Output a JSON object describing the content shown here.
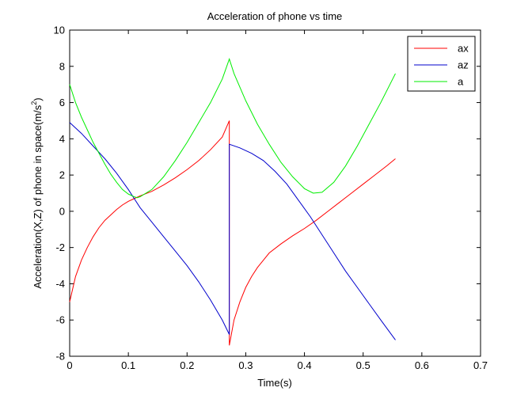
{
  "chart_data": {
    "type": "line",
    "title": "Acceleration of phone vs time",
    "xlabel": "Time(s)",
    "ylabel": "Acceleration(X,Z) of phone in space(m/s",
    "ylabel_sup": "2",
    "ylabel_close": ")",
    "xlim": [
      0,
      0.7
    ],
    "ylim": [
      -8,
      10
    ],
    "xticks": [
      0,
      0.1,
      0.2,
      0.3,
      0.4,
      0.5,
      0.6,
      0.7
    ],
    "xtick_labels": [
      "0",
      "0.1",
      "0.2",
      "0.3",
      "0.4",
      "0.5",
      "0.6",
      "0.7"
    ],
    "yticks": [
      -8,
      -6,
      -4,
      -2,
      0,
      2,
      4,
      6,
      8,
      10
    ],
    "ytick_labels": [
      "-8",
      "-6",
      "-4",
      "-2",
      "0",
      "2",
      "4",
      "6",
      "8",
      "10"
    ],
    "grid": false,
    "legend_position": "top-right",
    "series": [
      {
        "name": "ax",
        "color": "#ff0000",
        "points": [
          [
            0,
            -5.0
          ],
          [
            0.01,
            -3.6
          ],
          [
            0.02,
            -2.7
          ],
          [
            0.03,
            -2.0
          ],
          [
            0.04,
            -1.4
          ],
          [
            0.05,
            -0.9
          ],
          [
            0.06,
            -0.5
          ],
          [
            0.07,
            -0.2
          ],
          [
            0.08,
            0.1
          ],
          [
            0.09,
            0.35
          ],
          [
            0.1,
            0.55
          ],
          [
            0.11,
            0.7
          ],
          [
            0.12,
            0.85
          ],
          [
            0.14,
            1.1
          ],
          [
            0.16,
            1.45
          ],
          [
            0.18,
            1.85
          ],
          [
            0.2,
            2.3
          ],
          [
            0.22,
            2.8
          ],
          [
            0.24,
            3.4
          ],
          [
            0.26,
            4.1
          ],
          [
            0.272,
            5.0
          ],
          [
            0.272,
            -7.4
          ],
          [
            0.28,
            -6.0
          ],
          [
            0.29,
            -5.0
          ],
          [
            0.3,
            -4.2
          ],
          [
            0.31,
            -3.6
          ],
          [
            0.32,
            -3.1
          ],
          [
            0.33,
            -2.7
          ],
          [
            0.34,
            -2.3
          ],
          [
            0.36,
            -1.8
          ],
          [
            0.38,
            -1.35
          ],
          [
            0.4,
            -0.95
          ],
          [
            0.42,
            -0.5
          ],
          [
            0.44,
            0.0
          ],
          [
            0.46,
            0.5
          ],
          [
            0.48,
            1.0
          ],
          [
            0.5,
            1.5
          ],
          [
            0.52,
            2.0
          ],
          [
            0.54,
            2.5
          ],
          [
            0.555,
            2.9
          ]
        ]
      },
      {
        "name": "az",
        "color": "#0000cc",
        "points": [
          [
            0,
            4.9
          ],
          [
            0.02,
            4.3
          ],
          [
            0.04,
            3.6
          ],
          [
            0.06,
            2.9
          ],
          [
            0.08,
            2.1
          ],
          [
            0.1,
            1.2
          ],
          [
            0.11,
            0.7
          ],
          [
            0.12,
            0.2
          ],
          [
            0.14,
            -0.6
          ],
          [
            0.16,
            -1.4
          ],
          [
            0.18,
            -2.2
          ],
          [
            0.2,
            -3.0
          ],
          [
            0.22,
            -3.9
          ],
          [
            0.24,
            -4.9
          ],
          [
            0.26,
            -6.0
          ],
          [
            0.272,
            -6.8
          ],
          [
            0.272,
            3.7
          ],
          [
            0.29,
            3.5
          ],
          [
            0.31,
            3.2
          ],
          [
            0.33,
            2.8
          ],
          [
            0.35,
            2.2
          ],
          [
            0.37,
            1.5
          ],
          [
            0.39,
            0.6
          ],
          [
            0.41,
            -0.3
          ],
          [
            0.43,
            -1.3
          ],
          [
            0.45,
            -2.3
          ],
          [
            0.47,
            -3.3
          ],
          [
            0.49,
            -4.2
          ],
          [
            0.51,
            -5.1
          ],
          [
            0.53,
            -6.0
          ],
          [
            0.555,
            -7.1
          ]
        ]
      },
      {
        "name": "a",
        "color": "#00ee00",
        "points": [
          [
            0,
            7.0
          ],
          [
            0.01,
            6.0
          ],
          [
            0.02,
            5.2
          ],
          [
            0.03,
            4.5
          ],
          [
            0.04,
            3.8
          ],
          [
            0.05,
            3.2
          ],
          [
            0.06,
            2.6
          ],
          [
            0.07,
            2.05
          ],
          [
            0.08,
            1.6
          ],
          [
            0.09,
            1.2
          ],
          [
            0.1,
            0.95
          ],
          [
            0.11,
            0.8
          ],
          [
            0.115,
            0.75
          ],
          [
            0.12,
            0.8
          ],
          [
            0.14,
            1.2
          ],
          [
            0.16,
            1.9
          ],
          [
            0.18,
            2.8
          ],
          [
            0.2,
            3.8
          ],
          [
            0.22,
            4.9
          ],
          [
            0.24,
            6.0
          ],
          [
            0.26,
            7.3
          ],
          [
            0.272,
            8.4
          ],
          [
            0.28,
            7.6
          ],
          [
            0.3,
            6.1
          ],
          [
            0.32,
            4.8
          ],
          [
            0.34,
            3.7
          ],
          [
            0.36,
            2.7
          ],
          [
            0.38,
            1.9
          ],
          [
            0.4,
            1.25
          ],
          [
            0.415,
            1.0
          ],
          [
            0.43,
            1.05
          ],
          [
            0.45,
            1.6
          ],
          [
            0.47,
            2.5
          ],
          [
            0.49,
            3.6
          ],
          [
            0.51,
            4.8
          ],
          [
            0.53,
            6.0
          ],
          [
            0.555,
            7.6
          ]
        ]
      }
    ]
  }
}
